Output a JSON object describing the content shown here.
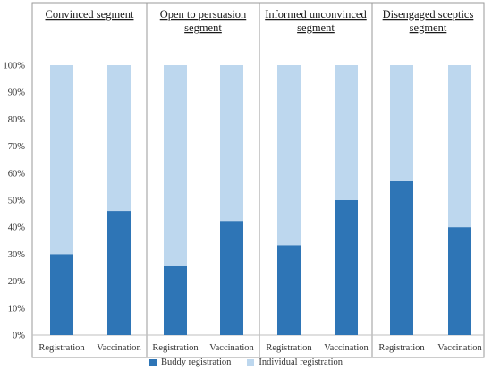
{
  "chart_data": {
    "type": "bar",
    "stacked": true,
    "percent_axis": true,
    "ylim": [
      0,
      100
    ],
    "yticks": [
      "0%",
      "10%",
      "20%",
      "30%",
      "40%",
      "50%",
      "60%",
      "70%",
      "80%",
      "90%",
      "100%"
    ],
    "categories": [
      "Registration",
      "Vaccination"
    ],
    "panels": [
      {
        "title": [
          "Convinced segment"
        ],
        "buddy": [
          30,
          46
        ]
      },
      {
        "title": [
          "Open to persuasion",
          "segment"
        ],
        "buddy": [
          25.5,
          42.3
        ]
      },
      {
        "title": [
          "Informed unconvinced",
          "segment"
        ],
        "buddy": [
          33.3,
          50
        ]
      },
      {
        "title": [
          "Disengaged sceptics",
          "segment"
        ],
        "buddy": [
          57.2,
          40
        ]
      }
    ],
    "series": [
      {
        "name": "Buddy registration",
        "color": "#2e75b6"
      },
      {
        "name": "Individual registration",
        "color": "#bdd7ee"
      }
    ],
    "grid": false,
    "legend_position": "bottom"
  }
}
